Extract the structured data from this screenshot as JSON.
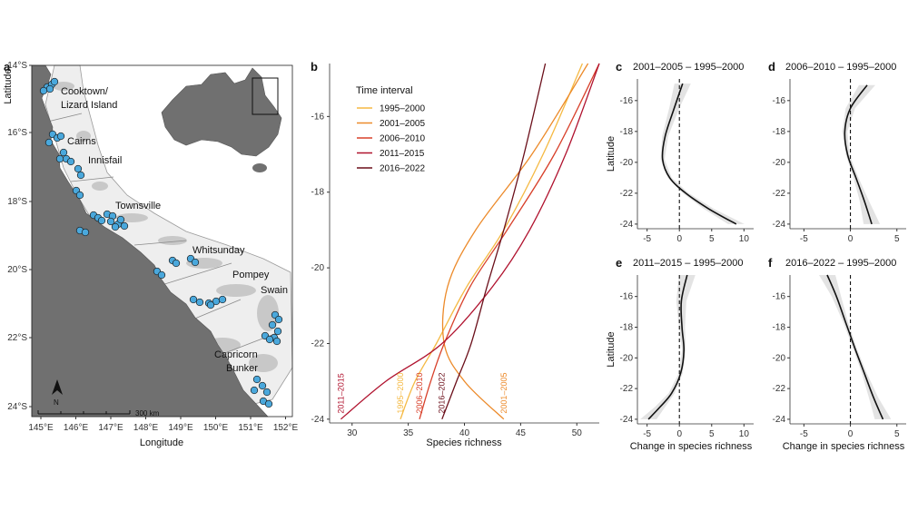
{
  "panels": {
    "a": "a",
    "b": "b",
    "c": "c",
    "d": "d",
    "e": "e",
    "f": "f"
  },
  "map": {
    "xlabel": "Longitude",
    "ylabel": "Latitude",
    "lon_ticks": [
      "145°E",
      "146°E",
      "147°E",
      "148°E",
      "149°E",
      "150°E",
      "151°E",
      "152°E"
    ],
    "lat_ticks": [
      "14°S",
      "16°S",
      "18°S",
      "20°S",
      "22°S",
      "24°S"
    ],
    "cities": [
      "Cooktown/",
      "Lizard Island",
      "Cairns",
      "Innisfail",
      "Townsville",
      "Whitsunday",
      "Pompey",
      "Swain",
      "Capricorn",
      "Bunker"
    ],
    "scale": "300 km",
    "north": "N",
    "colors": {
      "land": "#707070",
      "reef": "#c8c8c8",
      "site": "#4aa8dc",
      "site_edge": "#1a1a1a"
    }
  },
  "chart_data": [
    {
      "type": "line",
      "panel": "b",
      "xlabel": "Species richness",
      "ylabel": "",
      "xlim": [
        28,
        52
      ],
      "ylim": [
        -24.1,
        -14.6
      ],
      "xticks": [
        30,
        35,
        40,
        45,
        50
      ],
      "yticks": [
        -16,
        -18,
        -20,
        -22,
        -24
      ],
      "legend_title": "Time interval",
      "series": [
        {
          "name": "1995–2000",
          "color": "#f5b942",
          "x": [
            34.3,
            35.6,
            37.5,
            40.2,
            43.5,
            47.0,
            50.5
          ],
          "y": [
            -24,
            -23,
            -22,
            -20.5,
            -19,
            -17,
            -14.6
          ]
        },
        {
          "name": "2001–2005",
          "color": "#ec8a2a",
          "x": [
            43.5,
            40.0,
            38.2,
            38.5,
            41.0,
            46.0,
            51.0
          ],
          "y": [
            -24,
            -23,
            -22,
            -20.5,
            -19,
            -17,
            -14.6
          ]
        },
        {
          "name": "2006–2010",
          "color": "#d8402a",
          "x": [
            36.0,
            37.0,
            38.2,
            40.5,
            43.8,
            48.0,
            52.0
          ],
          "y": [
            -24,
            -23,
            -22,
            -20.5,
            -19,
            -17,
            -14.6
          ]
        },
        {
          "name": "2011–2015",
          "color": "#b0122e",
          "x": [
            29.0,
            33.0,
            38.0,
            42.5,
            45.8,
            49.0,
            52.0
          ],
          "y": [
            -24,
            -23,
            -22,
            -20.5,
            -19,
            -17,
            -14.6
          ]
        },
        {
          "name": "2016–2022",
          "color": "#6b0f1a",
          "x": [
            38.0,
            39.3,
            40.6,
            42.0,
            43.5,
            45.3,
            47.2
          ],
          "y": [
            -24,
            -23,
            -22,
            -20.5,
            -19,
            -17,
            -14.6
          ]
        }
      ],
      "annotations": [
        "2011–2015",
        "1995–2000",
        "2006–2010",
        "2016–2022",
        "2001–2005"
      ]
    },
    {
      "type": "line",
      "panel": "c",
      "title": "2001–2005 – 1995–2000",
      "xlim": [
        -6.5,
        11.5
      ],
      "ylim": [
        -24.3,
        -14.6
      ],
      "xticks": [
        -5,
        0,
        5,
        10
      ],
      "yticks": [
        -16,
        -18,
        -20,
        -22,
        -24
      ],
      "ylabel": "Latitude",
      "xlabel": "",
      "x": [
        0.5,
        -0.8,
        -2.2,
        -2.6,
        -1.5,
        1.0,
        4.5,
        8.8
      ],
      "y": [
        -14.9,
        -16.5,
        -18.3,
        -19.8,
        -21.0,
        -22.0,
        -23.0,
        -24.0
      ]
    },
    {
      "type": "line",
      "panel": "d",
      "title": "2006–2010 – 1995–2000",
      "xlim": [
        -6.5,
        6.0
      ],
      "ylim": [
        -24.3,
        -14.6
      ],
      "xticks": [
        -5,
        0,
        5
      ],
      "yticks": [
        -16,
        -18,
        -20,
        -22,
        -24
      ],
      "ylabel": "",
      "xlabel": "",
      "x": [
        1.8,
        0.0,
        -0.6,
        -0.3,
        0.6,
        1.5,
        2.3
      ],
      "y": [
        -15.0,
        -16.5,
        -18.0,
        -19.5,
        -21.0,
        -22.5,
        -24.0
      ]
    },
    {
      "type": "line",
      "panel": "e",
      "title": "2011–2015 – 1995–2000",
      "xlim": [
        -6.5,
        11.5
      ],
      "ylim": [
        -24.3,
        -14.6
      ],
      "xticks": [
        -5,
        0,
        5,
        10
      ],
      "yticks": [
        -16,
        -18,
        -20,
        -22,
        -24
      ],
      "ylabel": "Latitude",
      "xlabel": "Change in species richness",
      "x": [
        1.2,
        0.3,
        0.4,
        0.7,
        0.2,
        -1.2,
        -3.0,
        -4.8
      ],
      "y": [
        -14.6,
        -16.3,
        -18.0,
        -19.5,
        -21.0,
        -22.3,
        -23.2,
        -24.0
      ]
    },
    {
      "type": "line",
      "panel": "f",
      "title": "2016–2022 – 1995–2000",
      "xlim": [
        -6.5,
        6.0
      ],
      "ylim": [
        -24.3,
        -14.6
      ],
      "xticks": [
        -5,
        0,
        5
      ],
      "yticks": [
        -16,
        -18,
        -20,
        -22,
        -24
      ],
      "ylabel": "",
      "xlabel": "Change in species richness",
      "x": [
        -2.5,
        -1.5,
        -0.5,
        0.5,
        1.5,
        2.5,
        3.5
      ],
      "y": [
        -14.6,
        -16.0,
        -17.7,
        -19.4,
        -21.0,
        -22.6,
        -24.0
      ]
    }
  ]
}
